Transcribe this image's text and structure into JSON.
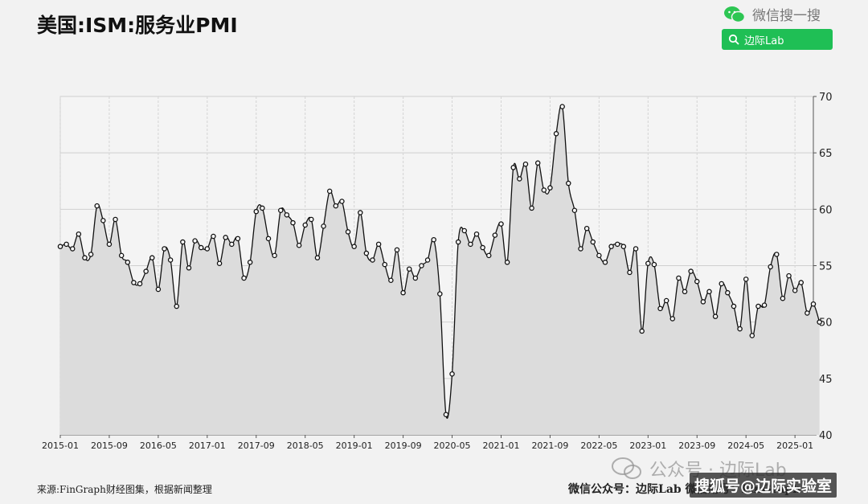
{
  "title": "美国:ISM:服务业PMI",
  "header": {
    "wechat_search_text": "微信搜一搜",
    "search_button_text": "边际Lab",
    "accent_color": "#1fbf55"
  },
  "source_note": "来源:FinGraph财经图集，根据新闻整理",
  "footer_right": "微信公众号：边际Lab  微信用号：FinGraph",
  "watermark": {
    "text": "公众号 · 边际Lab",
    "sohu_text": "搜狐号@边际实验室"
  },
  "chart_data": {
    "type": "area",
    "title": "美国:ISM:服务业PMI",
    "ylim": [
      40,
      70
    ],
    "yticks": [
      40,
      45,
      50,
      55,
      60,
      65,
      70
    ],
    "y_axis_side": "right",
    "x_tick_labels": [
      "2015-01",
      "2015-09",
      "2016-05",
      "2017-01",
      "2017-09",
      "2018-05",
      "2019-01",
      "2019-09",
      "2020-05",
      "2021-01",
      "2021-09",
      "2022-05",
      "2023-01",
      "2023-09",
      "2024-05",
      "2025-01"
    ],
    "x_start": "2015-01",
    "x_end": "2025-04",
    "grid": true,
    "line_color": "#111111",
    "fill_color": "#dcdcdc",
    "series": [
      {
        "values": [
          56.7,
          56.9,
          56.5,
          57.8,
          55.7,
          56.0,
          60.3,
          59.0,
          56.9,
          59.1,
          55.9,
          55.3,
          53.5,
          53.4,
          54.5,
          55.7,
          52.9,
          56.5,
          55.5,
          51.4,
          57.1,
          54.8,
          57.2,
          56.6,
          56.5,
          57.6,
          55.2,
          57.5,
          56.9,
          57.4,
          53.9,
          55.3,
          59.8,
          60.1,
          57.4,
          55.9,
          59.9,
          59.5,
          58.8,
          56.8,
          58.6,
          59.1,
          55.7,
          58.5,
          61.6,
          60.3,
          60.7,
          58.0,
          56.7,
          59.7,
          56.1,
          55.5,
          56.9,
          55.1,
          53.7,
          56.4,
          52.6,
          54.7,
          53.9,
          55.0,
          55.5,
          57.3,
          52.5,
          41.8,
          45.4,
          57.1,
          58.1,
          56.9,
          57.8,
          56.6,
          55.9,
          57.7,
          58.7,
          55.3,
          63.7,
          62.7,
          64.0,
          60.1,
          64.1,
          61.7,
          61.9,
          66.7,
          69.1,
          62.3,
          59.9,
          56.5,
          58.3,
          57.1,
          55.9,
          55.3,
          56.7,
          56.9,
          56.7,
          54.4,
          56.5,
          49.2,
          55.2,
          55.1,
          51.2,
          51.9,
          50.3,
          53.9,
          52.7,
          54.5,
          53.6,
          51.8,
          52.7,
          50.5,
          53.4,
          52.6,
          51.4,
          49.4,
          53.8,
          48.8,
          51.4,
          51.5,
          54.9,
          56.0,
          52.1,
          54.1,
          52.8,
          53.5,
          50.8,
          51.6,
          50.0
        ]
      }
    ]
  }
}
